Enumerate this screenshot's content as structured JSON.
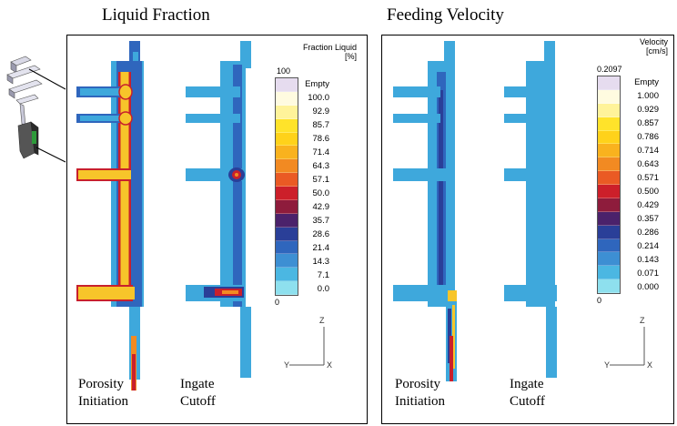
{
  "titles": {
    "left": "Liquid Fraction",
    "right": "Feeding Velocity"
  },
  "left_panel": {
    "legend_title_line1": "Fraction Liquid",
    "legend_title_line2": "[%]",
    "legend_top_value": "100",
    "legend_bottom_value": "0",
    "legend_labels": [
      "Empty",
      "100.0",
      "92.9",
      "85.7",
      "78.6",
      "71.4",
      "64.3",
      "57.1",
      "50.0",
      "42.9",
      "35.7",
      "28.6",
      "21.4",
      "14.3",
      "7.1",
      "0.0"
    ],
    "captions": {
      "a_line1": "Porosity",
      "a_line2": "Initiation",
      "b_line1": "Ingate",
      "b_line2": "Cutoff"
    },
    "axis_z": "Z",
    "axis_y": "Y",
    "axis_x": "X"
  },
  "right_panel": {
    "legend_title_line1": "Velocity",
    "legend_title_line2": "[cm/s]",
    "legend_top_value": "0.2097",
    "legend_bottom_value": "0",
    "legend_labels": [
      "Empty",
      "1.000",
      "0.929",
      "0.857",
      "0.786",
      "0.714",
      "0.643",
      "0.571",
      "0.500",
      "0.429",
      "0.357",
      "0.286",
      "0.214",
      "0.143",
      "0.071",
      "0.000"
    ],
    "captions": {
      "a_line1": "Porosity",
      "a_line2": "Initiation",
      "b_line1": "Ingate",
      "b_line2": "Cutoff"
    },
    "axis_z": "Z",
    "axis_y": "Y",
    "axis_x": "X"
  },
  "colors": {
    "scale": [
      "#e6dcef",
      "#fffbe0",
      "#fff39a",
      "#ffe32a",
      "#ffd21a",
      "#f9b21e",
      "#f28a22",
      "#ea5a24",
      "#cc1f2a",
      "#8e1c3c",
      "#4b226b",
      "#2a3f98",
      "#2f66bd",
      "#3d8fd3",
      "#4bb7e2",
      "#8ee0ee"
    ],
    "casting_blue": "#3ea8dc",
    "dark_blue": "#2a3f98",
    "hot_yellow": "#f7c52a",
    "red": "#c8202c"
  }
}
